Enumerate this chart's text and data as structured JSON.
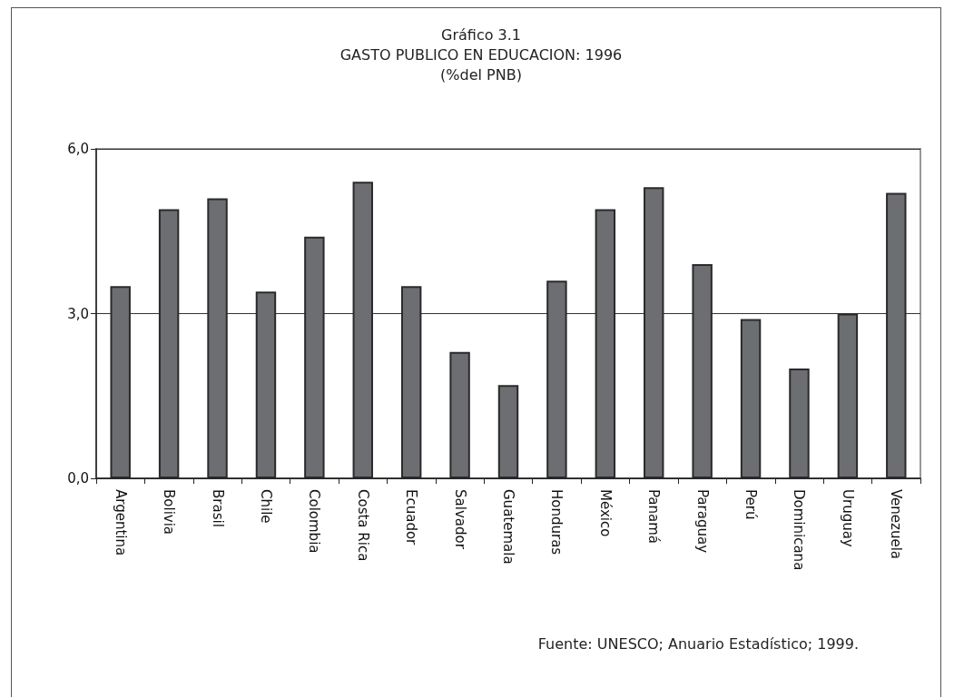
{
  "chart_data": {
    "type": "bar",
    "title": "Gráfico 3.1\nGASTO PUBLICO EN EDUCACION: 1996\n(%del PNB)",
    "categories": [
      "Argentina",
      "Bolivia",
      "Brasil",
      "Chile",
      "Colombia",
      "Costa Rica",
      "Ecuador",
      "Salvador",
      "Guatemala",
      "Honduras",
      "México",
      "Panamá",
      "Paraguay",
      "Perú",
      "Dominicana",
      "Uruguay",
      "Venezuela"
    ],
    "values": [
      3.5,
      4.9,
      5.1,
      3.4,
      4.4,
      5.4,
      3.5,
      2.3,
      1.7,
      3.6,
      4.9,
      5.3,
      3.9,
      2.9,
      2.0,
      3.0,
      5.2
    ],
    "color": "#6d6e72",
    "ylim": [
      0,
      6
    ],
    "yticks": [
      {
        "value": 0,
        "label": "0,0"
      },
      {
        "value": 3,
        "label": "3,0"
      },
      {
        "value": 6,
        "label": "6,0"
      }
    ],
    "grid": "y",
    "annotations": [
      "Fuente: UNESCO; Anuario Estadístico; 1999."
    ]
  }
}
